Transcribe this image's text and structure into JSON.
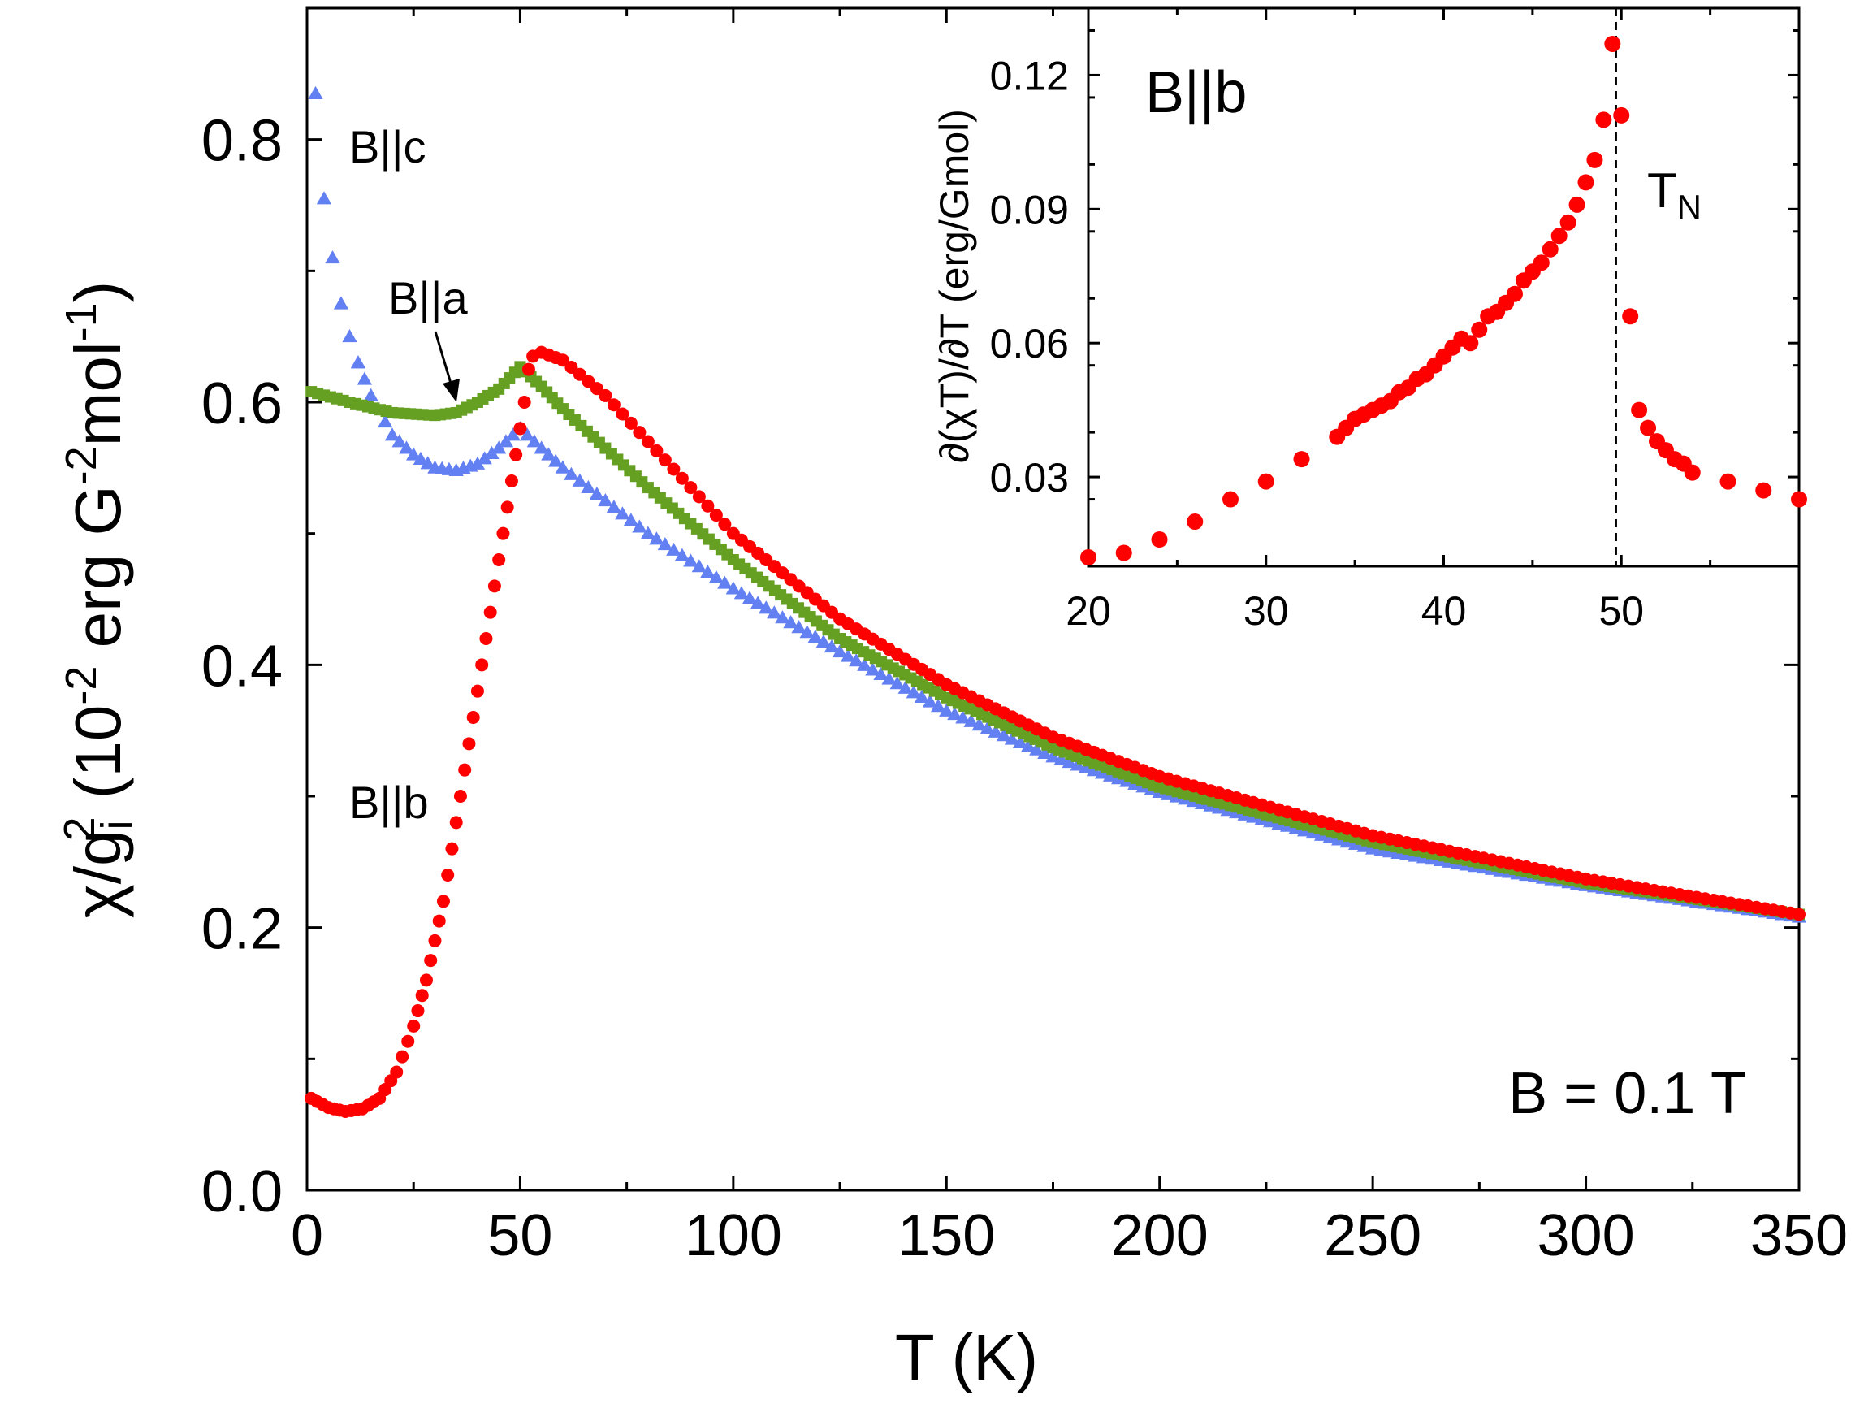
{
  "chart_data": [
    {
      "type": "scatter",
      "name": "main",
      "xlabel": "T (K)",
      "ylabel": {
        "parts": [
          "χ/g",
          "i",
          "2",
          " (10",
          "-2",
          " erg G",
          "-2",
          "mol",
          "-1",
          ")"
        ]
      },
      "xlim": [
        0,
        350
      ],
      "ylim": [
        0,
        0.9
      ],
      "xticks": [
        0,
        50,
        100,
        150,
        200,
        250,
        300,
        350
      ],
      "yticks": [
        0.0,
        0.2,
        0.4,
        0.6,
        0.8
      ],
      "xtick_labels": [
        "0",
        "50",
        "100",
        "150",
        "200",
        "250",
        "300",
        "350"
      ],
      "ytick_labels": [
        "0.0",
        "0.2",
        "0.4",
        "0.6",
        "0.8"
      ],
      "annotations": {
        "field": "B = 0.1 T",
        "label_a": "B||a",
        "label_b": "B||b",
        "label_c": "B||c"
      },
      "series": [
        {
          "name": "B||b",
          "color": "#ff0000",
          "marker": "circle",
          "points": [
            [
              1,
              0.07
            ],
            [
              5,
              0.063
            ],
            [
              9,
              0.06
            ],
            [
              13,
              0.062
            ],
            [
              17,
              0.07
            ],
            [
              21,
              0.09
            ],
            [
              25,
              0.125
            ],
            [
              28,
              0.16
            ],
            [
              30,
              0.19
            ],
            [
              32,
              0.22
            ],
            [
              34,
              0.26
            ],
            [
              36,
              0.3
            ],
            [
              38,
              0.34
            ],
            [
              40,
              0.38
            ],
            [
              42,
              0.42
            ],
            [
              44,
              0.46
            ],
            [
              46,
              0.5
            ],
            [
              48,
              0.54
            ],
            [
              50,
              0.58
            ],
            [
              51,
              0.6
            ],
            [
              52,
              0.625
            ],
            [
              53,
              0.635
            ],
            [
              55,
              0.638
            ],
            [
              60,
              0.632
            ],
            [
              70,
              0.605
            ],
            [
              80,
              0.57
            ],
            [
              100,
              0.5
            ],
            [
              125,
              0.435
            ],
            [
              150,
              0.385
            ],
            [
              175,
              0.345
            ],
            [
              200,
              0.315
            ],
            [
              250,
              0.27
            ],
            [
              300,
              0.237
            ],
            [
              350,
              0.21
            ]
          ]
        },
        {
          "name": "B||a",
          "color": "#66a023",
          "marker": "square",
          "points": [
            [
              1,
              0.608
            ],
            [
              10,
              0.6
            ],
            [
              20,
              0.592
            ],
            [
              30,
              0.59
            ],
            [
              35,
              0.592
            ],
            [
              40,
              0.6
            ],
            [
              45,
              0.61
            ],
            [
              50,
              0.627
            ],
            [
              55,
              0.612
            ],
            [
              60,
              0.595
            ],
            [
              70,
              0.565
            ],
            [
              80,
              0.535
            ],
            [
              100,
              0.48
            ],
            [
              125,
              0.42
            ],
            [
              150,
              0.375
            ],
            [
              175,
              0.337
            ],
            [
              200,
              0.307
            ],
            [
              250,
              0.265
            ],
            [
              300,
              0.234
            ],
            [
              350,
              0.21
            ]
          ]
        },
        {
          "name": "B||c",
          "color": "#6380f2",
          "marker": "triangle",
          "points": [
            [
              2,
              0.835
            ],
            [
              4,
              0.755
            ],
            [
              6,
              0.71
            ],
            [
              8,
              0.675
            ],
            [
              10,
              0.65
            ],
            [
              12,
              0.63
            ],
            [
              15,
              0.605
            ],
            [
              20,
              0.575
            ],
            [
              25,
              0.56
            ],
            [
              30,
              0.55
            ],
            [
              35,
              0.548
            ],
            [
              40,
              0.553
            ],
            [
              45,
              0.565
            ],
            [
              50,
              0.58
            ],
            [
              55,
              0.565
            ],
            [
              60,
              0.55
            ],
            [
              70,
              0.525
            ],
            [
              80,
              0.5
            ],
            [
              100,
              0.458
            ],
            [
              125,
              0.41
            ],
            [
              150,
              0.365
            ],
            [
              175,
              0.33
            ],
            [
              200,
              0.303
            ],
            [
              250,
              0.26
            ],
            [
              300,
              0.232
            ],
            [
              350,
              0.208
            ]
          ]
        }
      ]
    },
    {
      "type": "scatter",
      "name": "inset",
      "title": "B||b",
      "ylabel": "∂(χT)/∂T (erg/Gmol)",
      "xlim": [
        20,
        60
      ],
      "ylim": [
        0.01,
        0.135
      ],
      "xticks": [
        20,
        30,
        40,
        50
      ],
      "yticks": [
        0.03,
        0.06,
        0.09,
        0.12
      ],
      "xtick_labels": [
        "20",
        "30",
        "40",
        "50"
      ],
      "ytick_labels": [
        "0.03",
        "0.06",
        "0.09",
        "0.12"
      ],
      "vline": {
        "x": 49.7,
        "label": "T",
        "label_sub": "N"
      },
      "series": [
        {
          "name": "B||b",
          "color": "#ff0000",
          "marker": "circle",
          "points": [
            [
              20,
              0.012
            ],
            [
              22,
              0.013
            ],
            [
              24,
              0.016
            ],
            [
              26,
              0.02
            ],
            [
              28,
              0.025
            ],
            [
              30,
              0.029
            ],
            [
              32,
              0.034
            ],
            [
              34,
              0.039
            ],
            [
              34.5,
              0.041
            ],
            [
              35,
              0.043
            ],
            [
              35.5,
              0.044
            ],
            [
              36,
              0.045
            ],
            [
              36.5,
              0.046
            ],
            [
              37,
              0.047
            ],
            [
              37.5,
              0.049
            ],
            [
              38,
              0.05
            ],
            [
              38.5,
              0.052
            ],
            [
              39,
              0.053
            ],
            [
              39.5,
              0.055
            ],
            [
              40,
              0.057
            ],
            [
              40.5,
              0.059
            ],
            [
              41,
              0.061
            ],
            [
              41.5,
              0.06
            ],
            [
              42,
              0.063
            ],
            [
              42.5,
              0.066
            ],
            [
              43,
              0.067
            ],
            [
              43.5,
              0.069
            ],
            [
              44,
              0.071
            ],
            [
              44.5,
              0.074
            ],
            [
              45,
              0.076
            ],
            [
              45.5,
              0.078
            ],
            [
              46,
              0.081
            ],
            [
              46.5,
              0.084
            ],
            [
              47,
              0.087
            ],
            [
              47.5,
              0.091
            ],
            [
              48,
              0.096
            ],
            [
              48.5,
              0.101
            ],
            [
              49,
              0.11
            ],
            [
              49.5,
              0.127
            ],
            [
              50,
              0.111
            ],
            [
              50.5,
              0.066
            ],
            [
              51,
              0.045
            ],
            [
              51.5,
              0.041
            ],
            [
              52,
              0.038
            ],
            [
              52.5,
              0.036
            ],
            [
              53,
              0.034
            ],
            [
              53.5,
              0.033
            ],
            [
              54,
              0.031
            ],
            [
              56,
              0.029
            ],
            [
              58,
              0.027
            ],
            [
              60,
              0.025
            ]
          ]
        }
      ]
    }
  ]
}
